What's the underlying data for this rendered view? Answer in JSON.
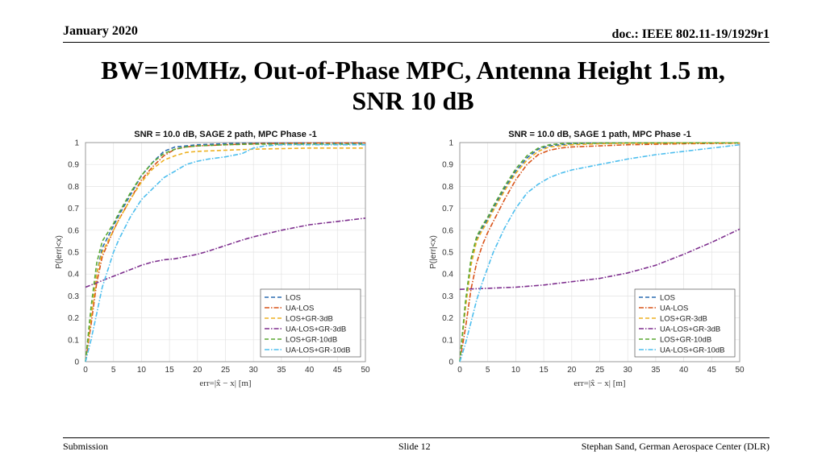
{
  "header": {
    "date": "January 2020",
    "doc": "doc.: IEEE 802.11-19/1929r1"
  },
  "slide_title_line1": "BW=10MHz, Out-of-Phase MPC, Antenna Height 1.5 m,",
  "slide_title_line2": "SNR 10 dB",
  "footer": {
    "left": "Submission",
    "center": "Slide 12",
    "right": "Stephan Sand, German Aerospace Center (DLR)"
  },
  "colors": {
    "LOS": "#2a6bb0",
    "UA-LOS": "#d95319",
    "LOS+GR-3dB": "#edb120",
    "UA-LOS+GR-3dB": "#7e2f8e",
    "LOS+GR-10dB": "#5aa832",
    "UA-LOS+GR-10dB": "#4dbeee"
  },
  "chart_data": [
    {
      "type": "line",
      "title": "SNR = 10.0 dB, SAGE 2 path, MPC Phase -1",
      "xlabel": "err=|x̂ − x| [m]",
      "ylabel": "P(|err|<x)",
      "xlim": [
        0,
        50
      ],
      "ylim": [
        0,
        1
      ],
      "xticks": [
        "0",
        "5",
        "10",
        "15",
        "20",
        "25",
        "30",
        "35",
        "40",
        "45",
        "50"
      ],
      "yticks": [
        "0",
        "0.1",
        "0.2",
        "0.3",
        "0.4",
        "0.5",
        "0.6",
        "0.7",
        "0.8",
        "0.9",
        "1"
      ],
      "grid": true,
      "legend": "bottom-right",
      "series": [
        {
          "name": "LOS",
          "x": [
            0,
            1,
            2,
            3,
            4,
            5,
            6,
            8,
            10,
            12,
            14,
            16,
            18,
            20,
            25,
            30,
            40,
            50
          ],
          "y": [
            0,
            0.2,
            0.4,
            0.52,
            0.57,
            0.62,
            0.67,
            0.76,
            0.85,
            0.91,
            0.96,
            0.98,
            0.985,
            0.99,
            0.995,
            0.997,
            0.998,
            0.998
          ]
        },
        {
          "name": "UA-LOS",
          "x": [
            0,
            1,
            2,
            3,
            4,
            5,
            6,
            8,
            10,
            12,
            14,
            16,
            18,
            20,
            25,
            30,
            40,
            50
          ],
          "y": [
            0,
            0.17,
            0.36,
            0.48,
            0.54,
            0.6,
            0.65,
            0.74,
            0.83,
            0.89,
            0.94,
            0.97,
            0.98,
            0.985,
            0.99,
            0.995,
            0.998,
            0.998
          ]
        },
        {
          "name": "LOS+GR-3dB",
          "x": [
            0,
            1,
            2,
            3,
            4,
            5,
            6,
            8,
            10,
            12,
            14,
            16,
            18,
            20,
            25,
            30,
            40,
            50
          ],
          "y": [
            0,
            0.2,
            0.4,
            0.5,
            0.55,
            0.6,
            0.65,
            0.74,
            0.82,
            0.88,
            0.92,
            0.94,
            0.955,
            0.96,
            0.965,
            0.97,
            0.975,
            0.975
          ]
        },
        {
          "name": "UA-LOS+GR-3dB",
          "x": [
            0,
            2,
            4,
            6,
            8,
            10,
            12,
            14,
            16,
            18,
            20,
            22,
            25,
            28,
            30,
            35,
            40,
            45,
            50
          ],
          "y": [
            0.34,
            0.36,
            0.38,
            0.4,
            0.42,
            0.44,
            0.455,
            0.465,
            0.47,
            0.48,
            0.49,
            0.505,
            0.53,
            0.555,
            0.57,
            0.6,
            0.625,
            0.64,
            0.655
          ]
        },
        {
          "name": "LOS+GR-10dB",
          "x": [
            0,
            1,
            2,
            3,
            4,
            5,
            6,
            8,
            10,
            12,
            14,
            16,
            18,
            20,
            25,
            30,
            40,
            50
          ],
          "y": [
            0,
            0.25,
            0.45,
            0.55,
            0.59,
            0.63,
            0.68,
            0.77,
            0.85,
            0.91,
            0.95,
            0.97,
            0.98,
            0.985,
            0.99,
            0.993,
            0.993,
            0.993
          ]
        },
        {
          "name": "UA-LOS+GR-10dB",
          "x": [
            0,
            1,
            2,
            3,
            4,
            5,
            6,
            8,
            10,
            12,
            14,
            16,
            18,
            20,
            22,
            25,
            28,
            30,
            32,
            35,
            40,
            50
          ],
          "y": [
            0,
            0.1,
            0.22,
            0.34,
            0.42,
            0.5,
            0.56,
            0.66,
            0.74,
            0.79,
            0.84,
            0.87,
            0.9,
            0.915,
            0.925,
            0.935,
            0.95,
            0.975,
            0.985,
            0.99,
            0.99,
            0.99
          ]
        }
      ]
    },
    {
      "type": "line",
      "title": "SNR = 10.0 dB, SAGE 1 path, MPC Phase -1",
      "xlabel": "err=|x̂ − x| [m]",
      "ylabel": "P(|err|<x)",
      "xlim": [
        0,
        50
      ],
      "ylim": [
        0,
        1
      ],
      "xticks": [
        "0",
        "5",
        "10",
        "15",
        "20",
        "25",
        "30",
        "35",
        "40",
        "45",
        "50"
      ],
      "yticks": [
        "0",
        "0.1",
        "0.2",
        "0.3",
        "0.4",
        "0.5",
        "0.6",
        "0.7",
        "0.8",
        "0.9",
        "1"
      ],
      "grid": true,
      "legend": "bottom-right",
      "series": [
        {
          "name": "LOS",
          "x": [
            0,
            1,
            2,
            3,
            4,
            5,
            6,
            8,
            10,
            12,
            14,
            16,
            18,
            20,
            25,
            30,
            40,
            50
          ],
          "y": [
            0,
            0.25,
            0.45,
            0.56,
            0.61,
            0.65,
            0.7,
            0.79,
            0.87,
            0.93,
            0.97,
            0.985,
            0.99,
            0.995,
            0.997,
            0.998,
            0.999,
            0.999
          ]
        },
        {
          "name": "UA-LOS",
          "x": [
            0,
            1,
            2,
            3,
            4,
            5,
            6,
            8,
            10,
            12,
            14,
            16,
            18,
            20,
            25,
            30,
            40,
            50
          ],
          "y": [
            0,
            0.15,
            0.33,
            0.45,
            0.53,
            0.59,
            0.64,
            0.74,
            0.83,
            0.9,
            0.945,
            0.965,
            0.975,
            0.98,
            0.985,
            0.99,
            0.995,
            0.997
          ]
        },
        {
          "name": "LOS+GR-3dB",
          "x": [
            0,
            1,
            2,
            3,
            4,
            5,
            6,
            8,
            10,
            12,
            14,
            16,
            18,
            20,
            25,
            30,
            40,
            50
          ],
          "y": [
            0,
            0.24,
            0.44,
            0.55,
            0.6,
            0.64,
            0.69,
            0.78,
            0.86,
            0.92,
            0.96,
            0.98,
            0.985,
            0.99,
            0.995,
            0.997,
            0.998,
            0.998
          ]
        },
        {
          "name": "UA-LOS+GR-3dB",
          "x": [
            0,
            5,
            10,
            15,
            20,
            25,
            30,
            35,
            40,
            45,
            50
          ],
          "y": [
            0.33,
            0.335,
            0.34,
            0.35,
            0.365,
            0.38,
            0.405,
            0.44,
            0.49,
            0.545,
            0.605
          ]
        },
        {
          "name": "LOS+GR-10dB",
          "x": [
            0,
            1,
            2,
            3,
            4,
            5,
            6,
            8,
            10,
            12,
            14,
            16,
            18,
            20,
            25,
            30,
            40,
            50
          ],
          "y": [
            0,
            0.27,
            0.47,
            0.57,
            0.62,
            0.66,
            0.71,
            0.8,
            0.88,
            0.94,
            0.975,
            0.99,
            0.995,
            0.997,
            0.998,
            0.999,
            0.999,
            0.999
          ]
        },
        {
          "name": "UA-LOS+GR-10dB",
          "x": [
            0,
            1,
            2,
            3,
            4,
            5,
            6,
            8,
            10,
            12,
            14,
            16,
            18,
            20,
            25,
            30,
            35,
            40,
            45,
            50
          ],
          "y": [
            0,
            0.08,
            0.18,
            0.28,
            0.36,
            0.43,
            0.5,
            0.61,
            0.7,
            0.77,
            0.81,
            0.84,
            0.86,
            0.875,
            0.9,
            0.925,
            0.945,
            0.96,
            0.975,
            0.99
          ]
        }
      ]
    }
  ]
}
